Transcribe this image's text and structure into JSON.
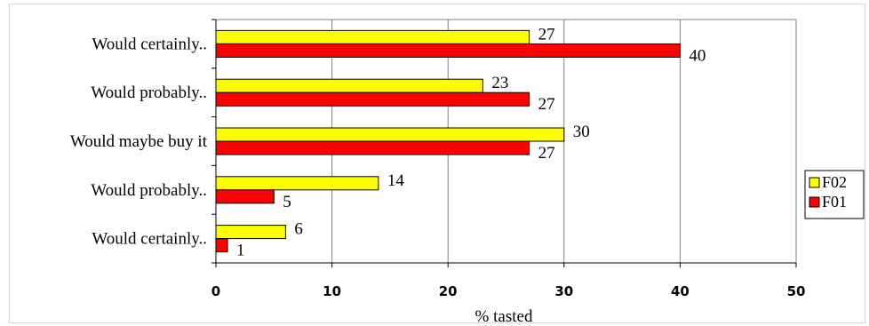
{
  "chart_data": {
    "type": "bar",
    "orientation": "horizontal",
    "categories": [
      "Would certainly..",
      "Would probably..",
      "Would maybe buy it",
      "Would probably..",
      "Would certainly.."
    ],
    "series": [
      {
        "name": "F02",
        "values": [
          27,
          23,
          30,
          14,
          6
        ],
        "color": "#ffff00"
      },
      {
        "name": "F01",
        "values": [
          40,
          27,
          27,
          5,
          1
        ],
        "color": "#ff0000"
      }
    ],
    "xlabel": "% tasted",
    "ylabel": "",
    "xlim": [
      0,
      50
    ],
    "xticks": [
      "0",
      "10",
      "20",
      "30",
      "40",
      "50"
    ],
    "grid": "vertical",
    "legend": "right"
  }
}
